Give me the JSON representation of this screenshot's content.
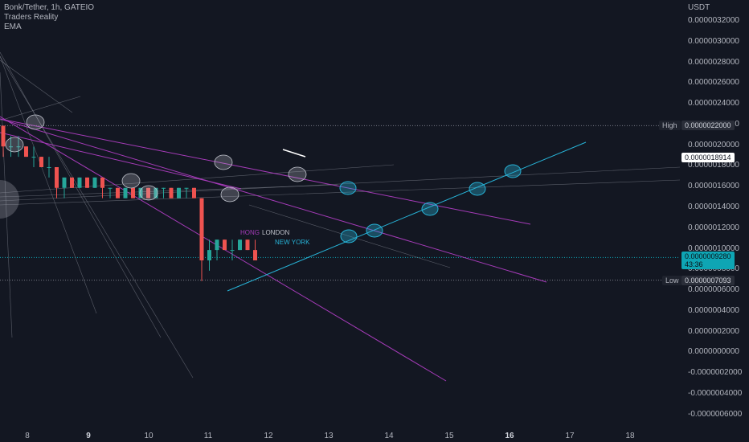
{
  "legend": {
    "symbol": "Bonk/Tether, 1h, GATEIO",
    "indicator_1": "Traders Reality",
    "indicator_2": "EMA"
  },
  "axis_unit": "USDT",
  "price_ticks": [
    "0.0000032000",
    "0.0000030000",
    "0.0000028000",
    "0.0000026000",
    "0.0000024000",
    "0.0000022000",
    "0.0000020000",
    "0.0000018000",
    "0.0000016000",
    "0.0000014000",
    "0.0000012000",
    "0.0000010000",
    "0.0000008000",
    "0.0000006000",
    "0.0000004000",
    "0.0000002000",
    "0.0000000000",
    "-0.0000002000",
    "-0.0000004000",
    "-0.0000006000"
  ],
  "time_ticks": [
    {
      "label": "8",
      "bold": false
    },
    {
      "label": "9",
      "bold": true
    },
    {
      "label": "10",
      "bold": false
    },
    {
      "label": "11",
      "bold": false
    },
    {
      "label": "12",
      "bold": false
    },
    {
      "label": "13",
      "bold": false
    },
    {
      "label": "14",
      "bold": false
    },
    {
      "label": "15",
      "bold": false
    },
    {
      "label": "16",
      "bold": true
    },
    {
      "label": "17",
      "bold": false
    },
    {
      "label": "18",
      "bold": false
    }
  ],
  "markers": {
    "high_label": "High",
    "high_value": "0.0000022000",
    "price_value": "0.0000018914",
    "low_label": "Low",
    "low_value": "0.0000007093",
    "last_value": "0.0000009280",
    "countdown": "43:36"
  },
  "sessions": [
    "HONG",
    "LONDON",
    "NEW YORK"
  ],
  "colors": {
    "background": "#131722",
    "up": "#26a69a",
    "down": "#ef5350",
    "trendline": "#a53bb8",
    "channel": "#27b2d6",
    "thin_line": "#8a8e99"
  },
  "chart_data": {
    "type": "candlestick",
    "series": [
      {
        "name": "Bonk/Tether, 1h, GATEIO",
        "ohlc": [
          [
            0,
            2.2e-06,
            2.2e-06,
            1.9e-06,
            2e-06
          ],
          [
            1,
            2e-06,
            2.1e-06,
            1.9e-06,
            2e-06
          ],
          [
            2,
            2e-06,
            2.1e-06,
            1.9e-06,
            2e-06
          ],
          [
            3,
            2e-06,
            2e-06,
            1.9e-06,
            1.9e-06
          ],
          [
            4,
            1.9e-06,
            2e-06,
            1.8e-06,
            1.9e-06
          ],
          [
            5,
            1.9e-06,
            1.9e-06,
            1.8e-06,
            1.8e-06
          ],
          [
            6,
            1.8e-06,
            1.9e-06,
            1.7e-06,
            1.8e-06
          ],
          [
            7,
            1.8e-06,
            1.8e-06,
            1.5e-06,
            1.6e-06
          ],
          [
            8,
            1.6e-06,
            1.7e-06,
            1.5e-06,
            1.7e-06
          ],
          [
            9,
            1.7e-06,
            1.7e-06,
            1.6e-06,
            1.6e-06
          ],
          [
            10,
            1.6e-06,
            1.7e-06,
            1.6e-06,
            1.7e-06
          ],
          [
            11,
            1.7e-06,
            1.7e-06,
            1.6e-06,
            1.6e-06
          ],
          [
            12,
            1.6e-06,
            1.7e-06,
            1.6e-06,
            1.7e-06
          ],
          [
            13,
            1.7e-06,
            1.7e-06,
            1.5e-06,
            1.6e-06
          ],
          [
            14,
            1.6e-06,
            1.6e-06,
            1.5e-06,
            1.6e-06
          ],
          [
            15,
            1.6e-06,
            1.6e-06,
            1.5e-06,
            1.5e-06
          ],
          [
            16,
            1.5e-06,
            1.6e-06,
            1.5e-06,
            1.6e-06
          ],
          [
            17,
            1.6e-06,
            1.6e-06,
            1.5e-06,
            1.5e-06
          ],
          [
            18,
            1.5e-06,
            1.6e-06,
            1.5e-06,
            1.6e-06
          ],
          [
            19,
            1.6e-06,
            1.6e-06,
            1.5e-06,
            1.5e-06
          ],
          [
            20,
            1.5e-06,
            1.6e-06,
            1.5e-06,
            1.6e-06
          ],
          [
            21,
            1.6e-06,
            1.6e-06,
            1.5e-06,
            1.6e-06
          ],
          [
            22,
            1.6e-06,
            1.6e-06,
            1.5e-06,
            1.5e-06
          ],
          [
            23,
            1.5e-06,
            1.6e-06,
            1.5e-06,
            1.6e-06
          ],
          [
            24,
            1.6e-06,
            1.6e-06,
            1.5e-06,
            1.6e-06
          ],
          [
            25,
            1.6e-06,
            1.6e-06,
            1.5e-06,
            1.5e-06
          ],
          [
            26,
            1.5e-06,
            1.5e-06,
            7e-07,
            9e-07
          ],
          [
            27,
            9e-07,
            1.1e-06,
            8e-07,
            1e-06
          ],
          [
            28,
            1e-06,
            1.1e-06,
            9e-07,
            1.1e-06
          ],
          [
            29,
            1.1e-06,
            1.1e-06,
            1e-06,
            1e-06
          ],
          [
            30,
            1e-06,
            1.1e-06,
            9e-07,
            1e-06
          ],
          [
            31,
            1e-06,
            1.1e-06,
            1e-06,
            1.1e-06
          ],
          [
            32,
            1.1e-06,
            1.1e-06,
            1e-06,
            1e-06
          ],
          [
            33,
            1e-06,
            1.1e-06,
            9e-07,
            9e-07
          ]
        ]
      }
    ],
    "ylabel": "USDT",
    "ylim": [
      -6e-07,
      3.2e-06
    ],
    "high": 2.2e-06,
    "low": 7.093e-07,
    "last": 9.28e-07,
    "grid": false
  }
}
